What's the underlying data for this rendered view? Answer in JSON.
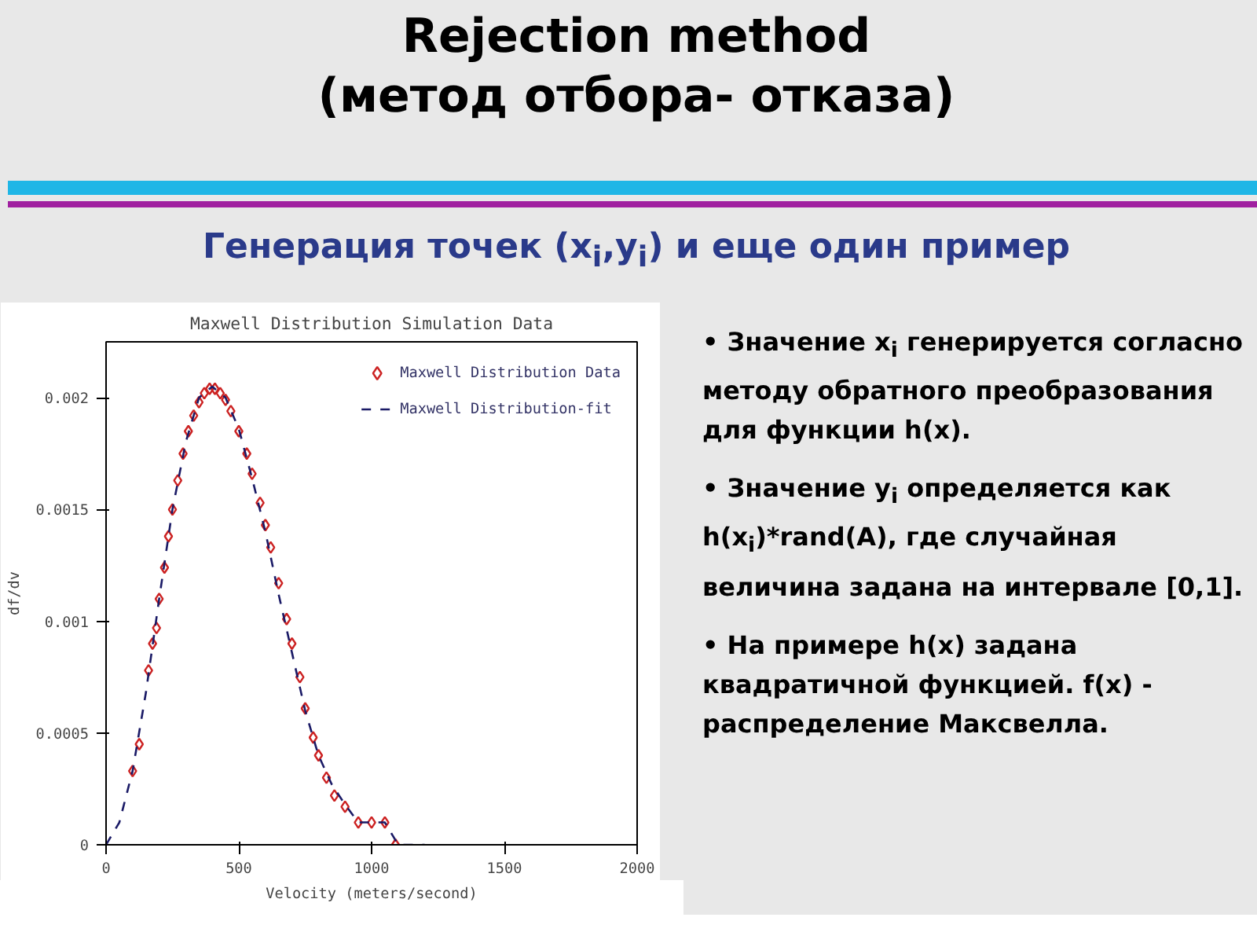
{
  "chart_data": {
    "type": "scatter",
    "title": "Maxwell Distribution Simulation Data",
    "xlabel": "Velocity (meters/second)",
    "ylabel": "df/dv",
    "xlim": [
      0,
      2000
    ],
    "ylim": [
      0,
      0.00225
    ],
    "xticks": [
      0,
      500,
      1000,
      1500,
      2000
    ],
    "yticks": [
      0,
      0.0005,
      0.001,
      0.0015,
      0.002
    ],
    "grid": false,
    "legend": "top right",
    "series": [
      {
        "name": "Maxwell Distribution Data",
        "marker": "diamond",
        "color": "#cc2222",
        "x": [
          100,
          125,
          160,
          175,
          190,
          200,
          220,
          235,
          250,
          270,
          290,
          310,
          330,
          350,
          370,
          390,
          410,
          430,
          450,
          470,
          500,
          530,
          550,
          580,
          600,
          620,
          650,
          680,
          700,
          730,
          750,
          780,
          800,
          830,
          860,
          900,
          950,
          1000,
          1050,
          1090
        ],
        "values": [
          0.00033,
          0.00045,
          0.00078,
          0.0009,
          0.00097,
          0.0011,
          0.00124,
          0.00138,
          0.0015,
          0.00163,
          0.00175,
          0.00185,
          0.00192,
          0.00198,
          0.00202,
          0.00204,
          0.00204,
          0.00202,
          0.00199,
          0.00194,
          0.00185,
          0.00175,
          0.00166,
          0.00153,
          0.00143,
          0.00133,
          0.00117,
          0.00101,
          0.0009,
          0.00075,
          0.00061,
          0.00048,
          0.0004,
          0.0003,
          0.00022,
          0.00017,
          0.0001,
          0.0001,
          0.0001,
          0
        ]
      },
      {
        "name": "Maxwell Distribution-fit",
        "type": "line",
        "line_style": "dashed",
        "color": "#1a1a66",
        "x": [
          0,
          50,
          100,
          150,
          200,
          250,
          300,
          350,
          400,
          450,
          500,
          550,
          600,
          650,
          700,
          750,
          800,
          850,
          900,
          950,
          1000,
          1050,
          1100,
          1200
        ],
        "values": [
          0,
          0.0001,
          0.00033,
          0.00068,
          0.0011,
          0.0015,
          0.0018,
          0.002,
          0.00205,
          0.002,
          0.00186,
          0.00164,
          0.0014,
          0.00112,
          0.00086,
          0.0006,
          0.0004,
          0.00027,
          0.00018,
          0.0001,
          0.0001,
          0.0001,
          0,
          0
        ]
      }
    ],
    "annotations": [
      "Rejection method",
      "(метод отбора- отказа)",
      "Генерация точек (x$_{i}$,y$_{i}$) и еще один пример",
      "• Значение x$_{i}$ генерируется согласно методу обратного преобразования для функции h(x).",
      "• Значение y$_{i}$ определяется как h(x$_{i}$)*rand(A), где случайная величина задана на интервале [0,1].",
      "• На примере h(x) задана квадратичной функцией. f(x) - распределение Максвелла."
    ]
  }
}
